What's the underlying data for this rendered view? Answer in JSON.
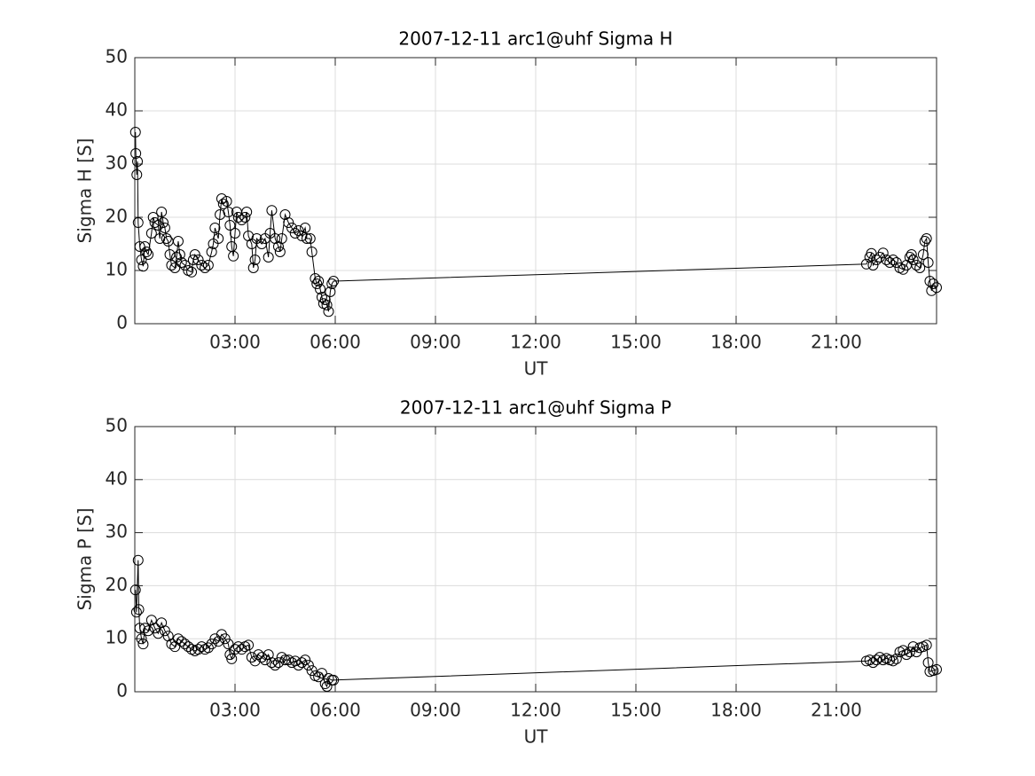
{
  "chart_data": [
    {
      "type": "line",
      "title": "2007-12-11  arc1@uhf Sigma H",
      "xlabel": "UT",
      "ylabel": "Sigma H [S]",
      "xlim": [
        0,
        24
      ],
      "xticks": [
        {
          "value": 3,
          "label": "03:00"
        },
        {
          "value": 6,
          "label": "06:00"
        },
        {
          "value": 9,
          "label": "09:00"
        },
        {
          "value": 12,
          "label": "12:00"
        },
        {
          "value": 15,
          "label": "15:00"
        },
        {
          "value": 18,
          "label": "18:00"
        },
        {
          "value": 21,
          "label": "21:00"
        }
      ],
      "ylim": [
        0,
        50
      ],
      "yticks": [
        0,
        10,
        20,
        30,
        40,
        50
      ],
      "grid": true,
      "color": "#000000",
      "marker": "circle",
      "x": [
        0.02,
        0.03,
        0.06,
        0.08,
        0.1,
        0.15,
        0.2,
        0.25,
        0.3,
        0.35,
        0.4,
        0.5,
        0.55,
        0.6,
        0.7,
        0.75,
        0.8,
        0.85,
        0.9,
        0.95,
        1.0,
        1.05,
        1.1,
        1.2,
        1.25,
        1.3,
        1.35,
        1.4,
        1.5,
        1.6,
        1.7,
        1.75,
        1.8,
        1.9,
        2.0,
        2.1,
        2.2,
        2.3,
        2.35,
        2.4,
        2.5,
        2.55,
        2.6,
        2.65,
        2.75,
        2.8,
        2.85,
        2.9,
        2.95,
        3.0,
        3.05,
        3.1,
        3.2,
        3.3,
        3.35,
        3.4,
        3.5,
        3.55,
        3.6,
        3.65,
        3.8,
        3.9,
        4.0,
        4.05,
        4.1,
        4.2,
        4.3,
        4.35,
        4.4,
        4.5,
        4.6,
        4.7,
        4.8,
        4.9,
        5.0,
        5.1,
        5.15,
        5.25,
        5.3,
        5.4,
        5.45,
        5.5,
        5.55,
        5.6,
        5.65,
        5.7,
        5.75,
        5.8,
        5.85,
        5.9,
        5.95,
        21.9,
        22.0,
        22.05,
        22.1,
        22.2,
        22.3,
        22.4,
        22.5,
        22.6,
        22.7,
        22.8,
        22.9,
        23.0,
        23.1,
        23.2,
        23.25,
        23.3,
        23.4,
        23.5,
        23.6,
        23.65,
        23.7,
        23.75,
        23.8,
        23.85,
        23.9,
        24.0
      ],
      "values": [
        36,
        32,
        28,
        30.5,
        19,
        14.5,
        12,
        10.8,
        14.5,
        13.5,
        13,
        17,
        20,
        19,
        18.5,
        16,
        21,
        19,
        18,
        16,
        15.5,
        13,
        11,
        10.5,
        12.5,
        15.5,
        13,
        11.5,
        11,
        10,
        9.7,
        12,
        13,
        12,
        11,
        10.5,
        11,
        13.5,
        15,
        18,
        16,
        20.5,
        23.5,
        22.5,
        23,
        21,
        18.5,
        14.5,
        12.7,
        17,
        21,
        20,
        19.5,
        20,
        21,
        16.5,
        15,
        10.5,
        12,
        16,
        15,
        16,
        12.5,
        17,
        21.3,
        16,
        14.5,
        13.5,
        16,
        20.5,
        19,
        18,
        17,
        17.5,
        16.5,
        18,
        16,
        16,
        13.5,
        8.5,
        7.5,
        8,
        6.5,
        5,
        3.8,
        4.5,
        3.5,
        2.3,
        6,
        7.5,
        8,
        11.2,
        12.5,
        13.2,
        11,
        12,
        12.5,
        13.3,
        12,
        11.5,
        12,
        11.5,
        10.5,
        10.2,
        11,
        12.5,
        13,
        12,
        11,
        10.5,
        13,
        15.5,
        16,
        11.5,
        8,
        6.2,
        7.5,
        6.8
      ]
    },
    {
      "type": "line",
      "title": "2007-12-11  arc1@uhf Sigma P",
      "xlabel": "UT",
      "ylabel": "Sigma P [S]",
      "xlim": [
        0,
        24
      ],
      "xticks": [
        {
          "value": 3,
          "label": "03:00"
        },
        {
          "value": 6,
          "label": "06:00"
        },
        {
          "value": 9,
          "label": "09:00"
        },
        {
          "value": 12,
          "label": "12:00"
        },
        {
          "value": 15,
          "label": "15:00"
        },
        {
          "value": 18,
          "label": "18:00"
        },
        {
          "value": 21,
          "label": "21:00"
        }
      ],
      "ylim": [
        0,
        50
      ],
      "yticks": [
        0,
        10,
        20,
        30,
        40,
        50
      ],
      "grid": true,
      "color": "#000000",
      "marker": "circle",
      "x": [
        0.02,
        0.05,
        0.1,
        0.12,
        0.15,
        0.2,
        0.25,
        0.3,
        0.4,
        0.5,
        0.6,
        0.7,
        0.8,
        0.9,
        1.0,
        1.1,
        1.2,
        1.3,
        1.4,
        1.5,
        1.6,
        1.7,
        1.8,
        1.9,
        2.0,
        2.1,
        2.2,
        2.3,
        2.4,
        2.5,
        2.6,
        2.7,
        2.8,
        2.85,
        2.9,
        3.0,
        3.1,
        3.2,
        3.3,
        3.4,
        3.5,
        3.6,
        3.7,
        3.8,
        3.9,
        4.0,
        4.1,
        4.2,
        4.3,
        4.4,
        4.5,
        4.6,
        4.7,
        4.8,
        4.9,
        5.0,
        5.1,
        5.2,
        5.3,
        5.4,
        5.5,
        5.6,
        5.7,
        5.75,
        5.8,
        5.9,
        5.95,
        21.9,
        22.0,
        22.1,
        22.2,
        22.3,
        22.4,
        22.5,
        22.6,
        22.7,
        22.8,
        22.9,
        23.0,
        23.1,
        23.2,
        23.3,
        23.4,
        23.5,
        23.6,
        23.7,
        23.75,
        23.8,
        23.9,
        24.0
      ],
      "values": [
        19.2,
        15,
        24.8,
        15.5,
        12,
        10,
        9,
        12,
        11.5,
        13.5,
        12,
        11,
        13,
        11.5,
        10.5,
        9,
        8.5,
        10,
        9.5,
        9,
        8.5,
        8,
        7.7,
        8,
        8.5,
        8,
        8.3,
        9,
        10,
        9.5,
        10.8,
        10,
        9,
        7,
        6.2,
        8,
        8.5,
        8,
        8.5,
        8.8,
        6.5,
        5.8,
        7,
        6.5,
        6,
        7,
        5.5,
        5,
        5.5,
        6.5,
        6,
        6,
        5.5,
        5.8,
        5,
        5.5,
        6,
        5,
        4,
        3,
        2.8,
        3.5,
        1.5,
        1,
        2.5,
        2.2,
        2.2,
        5.8,
        6,
        5.5,
        6,
        6.5,
        6,
        6.3,
        6,
        5.8,
        6.2,
        7.5,
        7.8,
        7,
        7.5,
        8.5,
        7.5,
        8.3,
        8.5,
        8.8,
        5.5,
        3.8,
        4,
        4.2
      ]
    }
  ]
}
